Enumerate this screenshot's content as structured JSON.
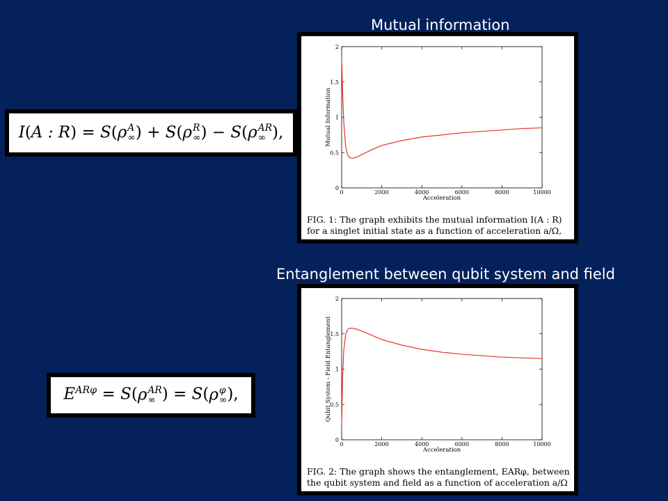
{
  "titles": {
    "top": "Mutual information",
    "bottom": "Entanglement between qubit system and field"
  },
  "equations": {
    "top": "I(A : R) = S(ρ∞A) + S(ρ∞R) − S(ρ∞AR),",
    "bottom": "EARφ = S(ρ∞AR) = S(ρ∞φ),"
  },
  "captions": {
    "fig1": "FIG. 1: The graph exhibits the mutual information I(A : R) for a singlet initial state as a function of acceleration a/Ω,",
    "fig2": "FIG. 2: The graph shows the entanglement, EARφ, between the qubit system and field as a function of acceleration a/Ω"
  },
  "chart_data": [
    {
      "type": "line",
      "xlabel": "Acceleration",
      "ylabel": "Mutual Information",
      "xlim": [
        0,
        10000
      ],
      "ylim": [
        0,
        2
      ],
      "xticks": [
        "0",
        "2000",
        "4000",
        "6000",
        "8000",
        "10000"
      ],
      "yticks": [
        "0",
        "0.5",
        "1",
        "1.5",
        "2"
      ],
      "color": "#e8322c",
      "series": [
        {
          "x": [
            0,
            50,
            100,
            200,
            300,
            400,
            500,
            700,
            1000,
            1500,
            2000,
            3000,
            4000,
            5000,
            6000,
            7000,
            8000,
            9000,
            10000
          ],
          "y": [
            1.85,
            1.35,
            0.95,
            0.58,
            0.47,
            0.43,
            0.42,
            0.43,
            0.47,
            0.54,
            0.6,
            0.67,
            0.72,
            0.75,
            0.78,
            0.8,
            0.82,
            0.84,
            0.85
          ]
        }
      ]
    },
    {
      "type": "line",
      "xlabel": "Acceleration",
      "ylabel": "Qubit System - Field Entanglement",
      "xlim": [
        0,
        10000
      ],
      "ylim": [
        0,
        2
      ],
      "xticks": [
        "0",
        "2000",
        "4000",
        "6000",
        "8000",
        "10000"
      ],
      "yticks": [
        "0",
        "0.5",
        "1",
        "1.5",
        "2"
      ],
      "color": "#e8322c",
      "series": [
        {
          "x": [
            0,
            50,
            100,
            200,
            300,
            400,
            500,
            700,
            1000,
            1500,
            2000,
            3000,
            4000,
            5000,
            6000,
            7000,
            8000,
            9000,
            10000
          ],
          "y": [
            0.2,
            0.9,
            1.25,
            1.5,
            1.56,
            1.58,
            1.58,
            1.57,
            1.54,
            1.48,
            1.42,
            1.34,
            1.28,
            1.24,
            1.21,
            1.19,
            1.17,
            1.16,
            1.15
          ]
        }
      ]
    }
  ]
}
